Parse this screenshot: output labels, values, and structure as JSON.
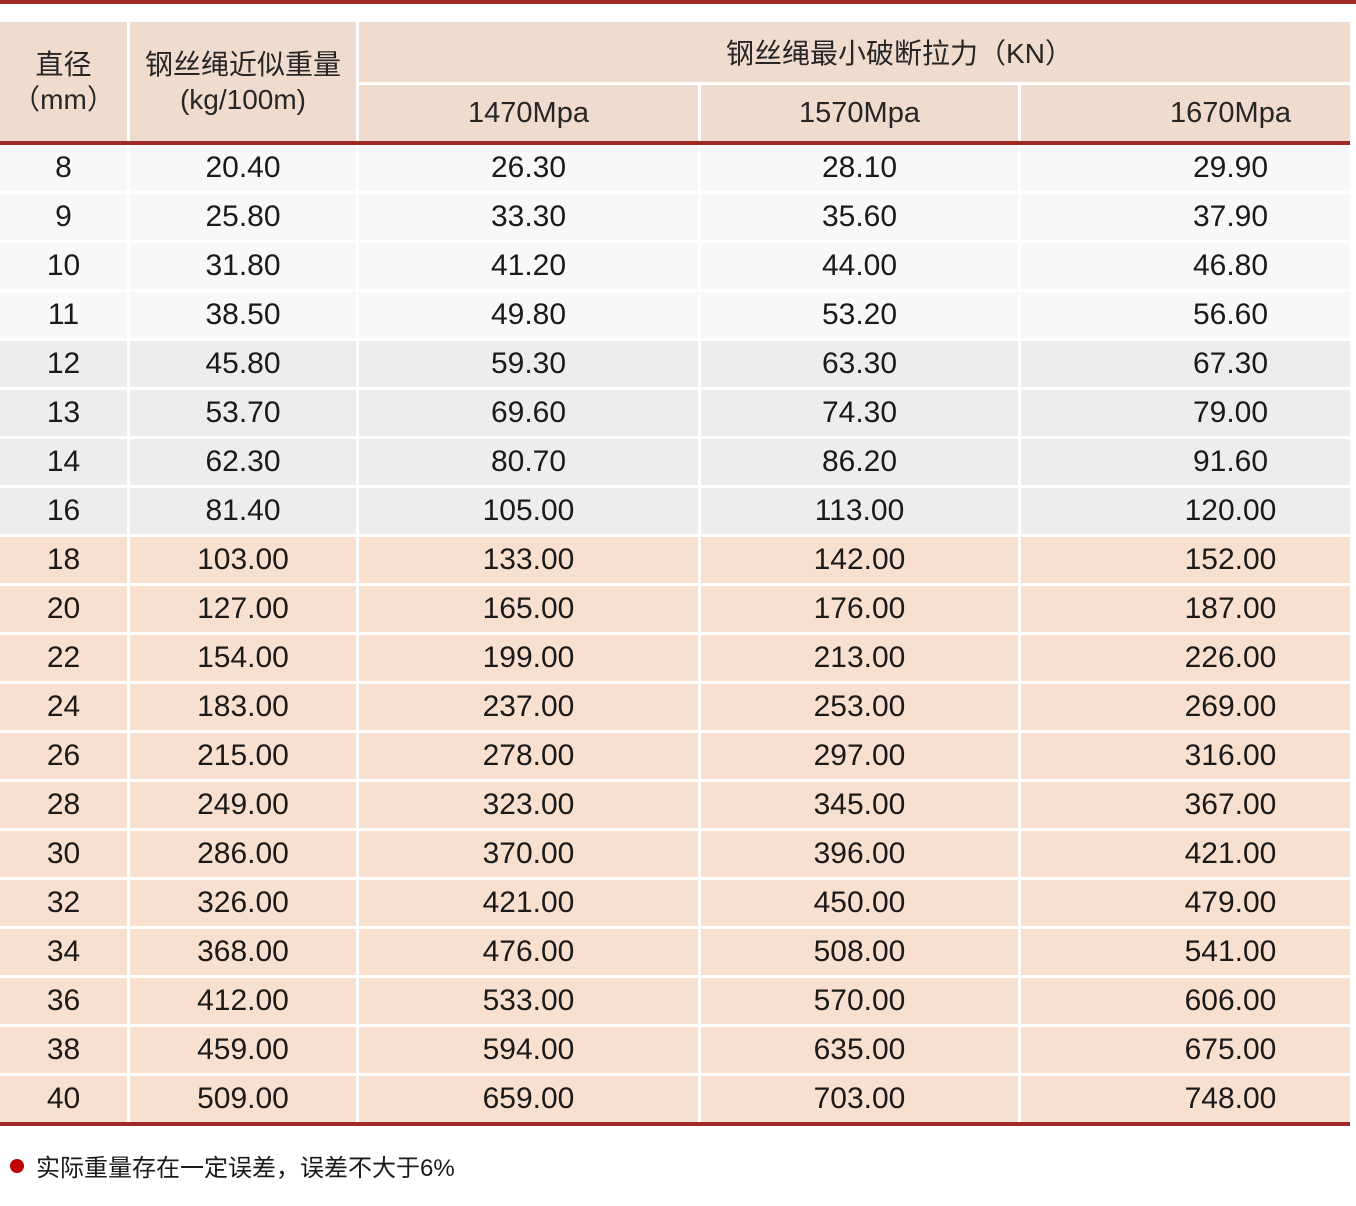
{
  "table": {
    "columns": {
      "diameter_line1": "直径",
      "diameter_line2": "（mm）",
      "weight_line1": "钢丝绳近似重量",
      "weight_line2": "(kg/100m)",
      "breaking_force_group": "钢丝绳最小破断拉力（KN）",
      "grades": [
        "1470Mpa",
        "1570Mpa",
        "1670Mpa"
      ]
    },
    "rows": [
      [
        "8",
        "20.40",
        "26.30",
        "28.10",
        "29.90"
      ],
      [
        "9",
        "25.80",
        "33.30",
        "35.60",
        "37.90"
      ],
      [
        "10",
        "31.80",
        "41.20",
        "44.00",
        "46.80"
      ],
      [
        "11",
        "38.50",
        "49.80",
        "53.20",
        "56.60"
      ],
      [
        "12",
        "45.80",
        "59.30",
        "63.30",
        "67.30"
      ],
      [
        "13",
        "53.70",
        "69.60",
        "74.30",
        "79.00"
      ],
      [
        "14",
        "62.30",
        "80.70",
        "86.20",
        "91.60"
      ],
      [
        "16",
        "81.40",
        "105.00",
        "113.00",
        "120.00"
      ],
      [
        "18",
        "103.00",
        "133.00",
        "142.00",
        "152.00"
      ],
      [
        "20",
        "127.00",
        "165.00",
        "176.00",
        "187.00"
      ],
      [
        "22",
        "154.00",
        "199.00",
        "213.00",
        "226.00"
      ],
      [
        "24",
        "183.00",
        "237.00",
        "253.00",
        "269.00"
      ],
      [
        "26",
        "215.00",
        "278.00",
        "297.00",
        "316.00"
      ],
      [
        "28",
        "249.00",
        "323.00",
        "345.00",
        "367.00"
      ],
      [
        "30",
        "286.00",
        "370.00",
        "396.00",
        "421.00"
      ],
      [
        "32",
        "326.00",
        "421.00",
        "450.00",
        "479.00"
      ],
      [
        "34",
        "368.00",
        "476.00",
        "508.00",
        "541.00"
      ],
      [
        "36",
        "412.00",
        "533.00",
        "570.00",
        "606.00"
      ],
      [
        "38",
        "459.00",
        "594.00",
        "635.00",
        "675.00"
      ],
      [
        "40",
        "509.00",
        "659.00",
        "703.00",
        "748.00"
      ]
    ]
  },
  "footer_note": "实际重量存在一定误差，误差不大于6%",
  "colors": {
    "accent_red": "#9e2a26",
    "bullet_red": "#c00000",
    "header_bg": "#efdccf",
    "row_pink": "#f8e0d0",
    "row_light": "#f8f8f8",
    "row_gray": "#ededed"
  }
}
